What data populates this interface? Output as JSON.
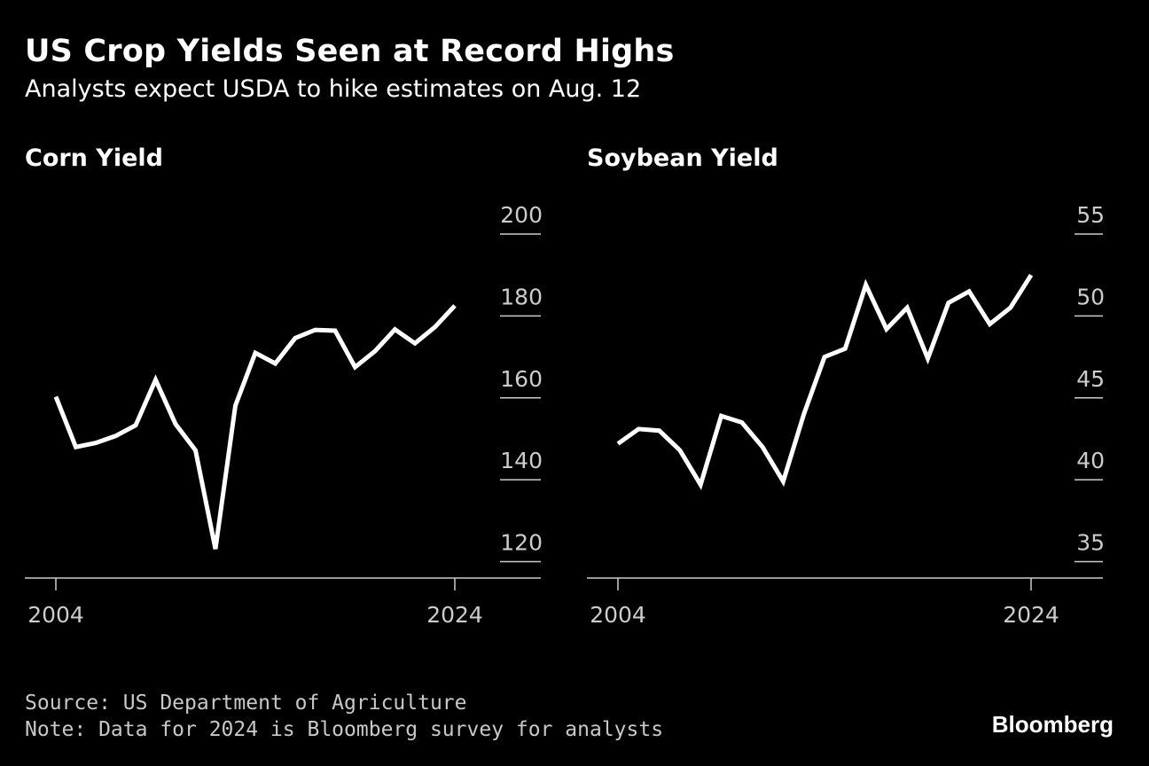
{
  "header": {
    "title": "US Crop Yields Seen at Record Highs",
    "subtitle": "Analysts expect USDA to hike estimates on Aug. 12"
  },
  "footer": {
    "source": "Source: US Department of Agriculture",
    "note": "Note: Data for 2024 is Bloomberg survey for analysts",
    "logo": "Bloomberg"
  },
  "colors": {
    "background": "#000000",
    "line": "#ffffff",
    "text": "#ffffff",
    "tick": "#cccccc"
  },
  "chart_data": [
    {
      "type": "line",
      "title": "Corn Yield",
      "xlabel": "",
      "ylabel": "",
      "x": [
        2004,
        2005,
        2006,
        2007,
        2008,
        2009,
        2010,
        2011,
        2012,
        2013,
        2014,
        2015,
        2016,
        2017,
        2018,
        2019,
        2020,
        2021,
        2022,
        2023,
        2024
      ],
      "series": [
        {
          "name": "Corn Yield",
          "values": [
            160.3,
            148,
            149,
            150.7,
            153.3,
            164.4,
            153.6,
            147.2,
            123.1,
            158.1,
            171,
            168.4,
            174.6,
            176.6,
            176.4,
            167.5,
            171.4,
            176.7,
            173.3,
            177.3,
            182.5
          ]
        }
      ],
      "xticks": [
        "2004",
        "2024"
      ],
      "yticks": [
        120,
        140,
        160,
        180,
        200
      ],
      "ylim": [
        116,
        200
      ],
      "xlim": [
        2004,
        2024
      ],
      "grid": false
    },
    {
      "type": "line",
      "title": "Soybean Yield",
      "xlabel": "",
      "ylabel": "",
      "x": [
        2004,
        2005,
        2006,
        2007,
        2008,
        2009,
        2010,
        2011,
        2012,
        2013,
        2014,
        2015,
        2016,
        2017,
        2018,
        2019,
        2020,
        2021,
        2022,
        2023,
        2024
      ],
      "series": [
        {
          "name": "Soybean Yield",
          "values": [
            42.2,
            43.1,
            43,
            41.8,
            39.7,
            43.9,
            43.5,
            42,
            39.9,
            44,
            47.5,
            48,
            51.9,
            49.2,
            50.5,
            47.4,
            50.8,
            51.5,
            49.5,
            50.5,
            52.5
          ]
        }
      ],
      "xticks": [
        "2004",
        "2024"
      ],
      "yticks": [
        35,
        40,
        45,
        50,
        55
      ],
      "ylim": [
        34,
        55
      ],
      "xlim": [
        2004,
        2024
      ],
      "grid": false
    }
  ]
}
